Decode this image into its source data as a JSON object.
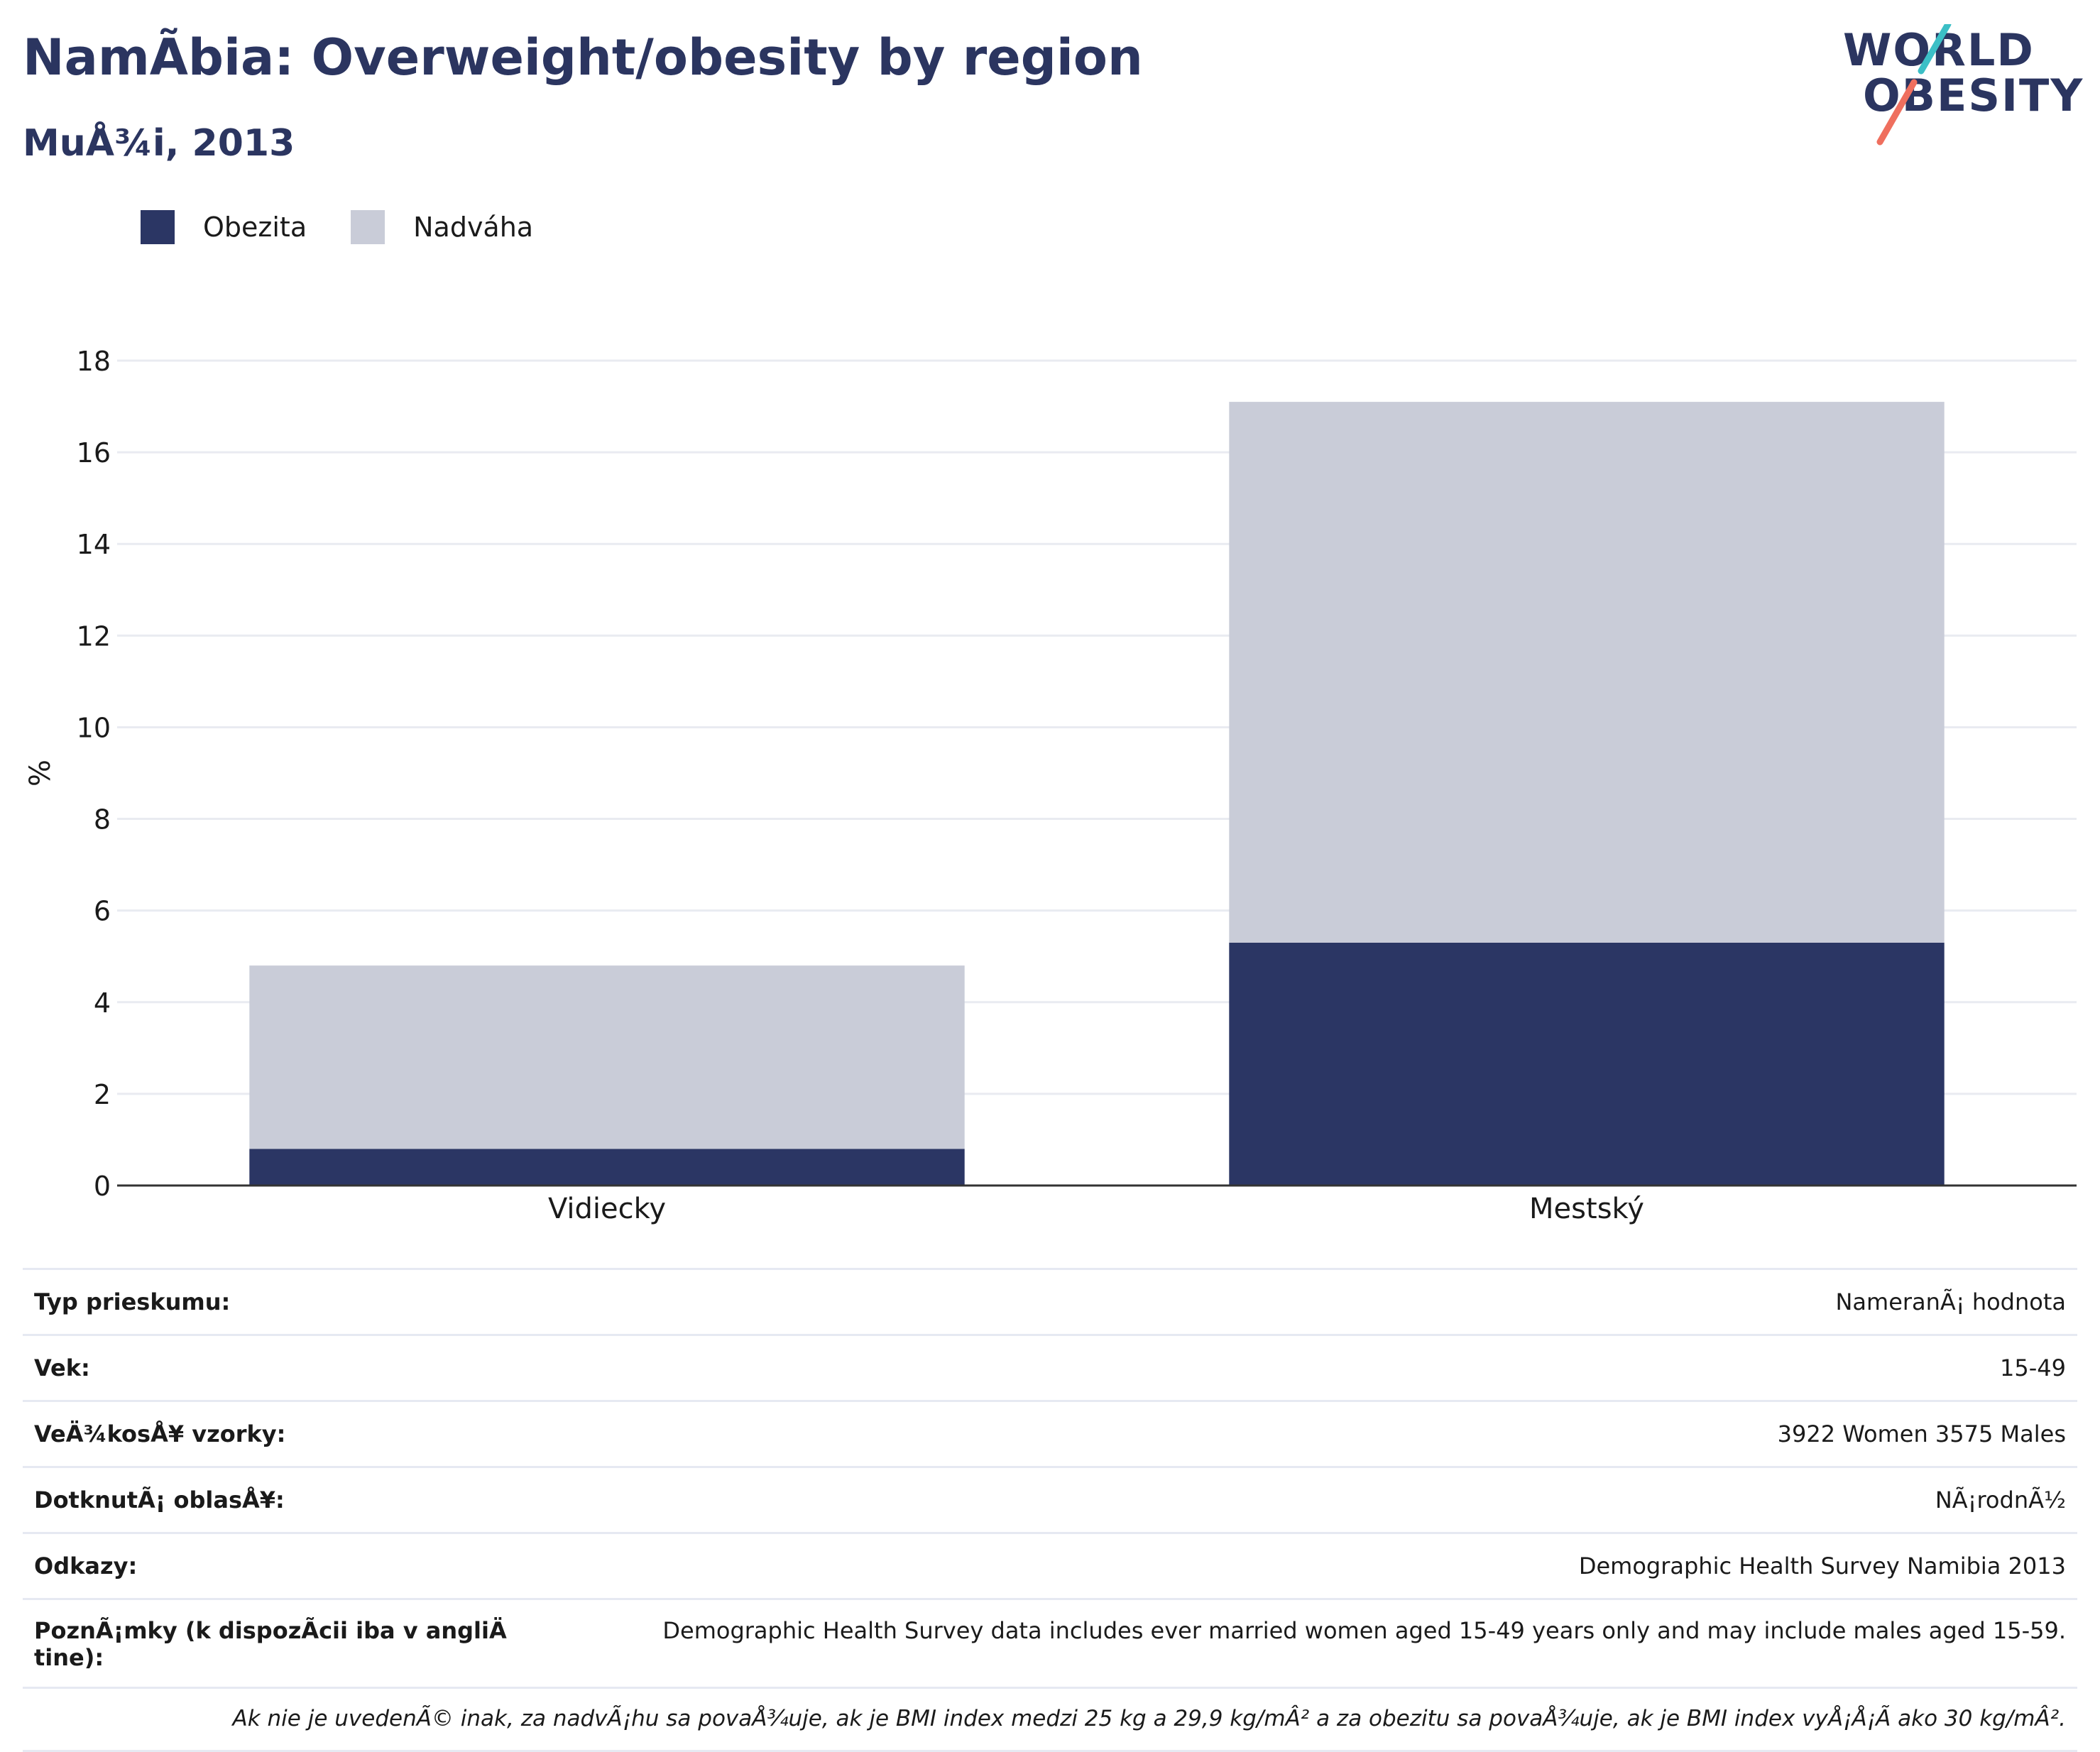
{
  "header": {
    "title": "NamÃbia: Overweight/obesity by region",
    "subtitle": "MuÅ¾i, 2013"
  },
  "logo": {
    "line1": "WORLD",
    "line2": "OBESITY",
    "colors": {
      "text": "#2b3560",
      "slash_top": "#3cbfc6",
      "slash_bottom": "#ef6f5e"
    }
  },
  "legend": [
    {
      "label": "Obezita",
      "color": "#2b3664"
    },
    {
      "label": "Nadváha",
      "color": "#c9ccd8"
    }
  ],
  "chart_data": {
    "type": "bar",
    "stacked": true,
    "categories": [
      "Vidiecky",
      "Mestský"
    ],
    "series": [
      {
        "name": "Obezita",
        "values": [
          0.8,
          5.3
        ],
        "color": "#2b3664"
      },
      {
        "name": "Nadváha",
        "values": [
          4.0,
          11.8
        ],
        "color": "#c9ccd8"
      }
    ],
    "ylabel": "%",
    "ylim": [
      0,
      18
    ],
    "yticks": [
      0,
      2,
      4,
      6,
      8,
      10,
      12,
      14,
      16,
      18
    ],
    "grid": true,
    "legend_position": "top-left"
  },
  "info": {
    "rows": [
      {
        "label": "Typ prieskumu:",
        "value": "NameranÃ¡ hodnota"
      },
      {
        "label": "Vek:",
        "value": "15-49"
      },
      {
        "label": "VeÄ¾kosÅ¥ vzorky:",
        "value": "3922 Women 3575 Males"
      },
      {
        "label": "DotknutÃ¡ oblasÅ¥:",
        "value": "NÃ¡rodnÃ½"
      },
      {
        "label": "Odkazy:",
        "value": "Demographic Health Survey Namibia 2013"
      }
    ],
    "notes": {
      "label": "PoznÃ¡mky (k dispozÃcii iba v angliÄ tine):",
      "value": "Demographic Health Survey data includes ever married women aged 15-49 years only and may include males aged 15-59."
    },
    "footnote": "Ak nie je uvedenÃ© inak, za nadvÃ¡hu sa povaÅ¾uje, ak je BMI index medzi 25 kg a 29,9 kg/mÂ² a za obezitu sa povaÅ¾uje, ak je BMI index vyÅ¡Å¡Ã ako 30 kg/mÂ²."
  }
}
